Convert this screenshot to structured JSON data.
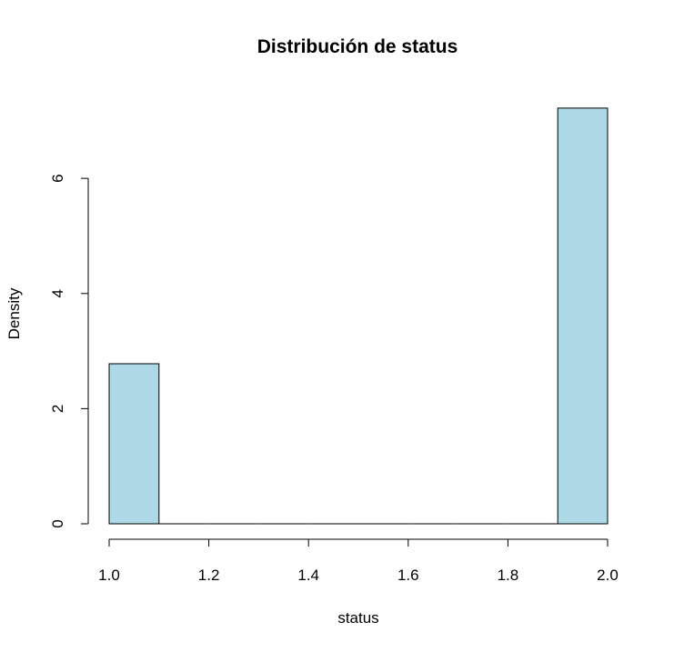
{
  "chart_data": {
    "type": "bar",
    "title": "Distribución de status",
    "xlabel": "status",
    "ylabel": "Density",
    "bar_color": "#ADD8E6",
    "xlim": [
      1.0,
      2.0
    ],
    "ylim": [
      0,
      7.25
    ],
    "xticks": [
      "1.0",
      "1.2",
      "1.4",
      "1.6",
      "1.8",
      "2.0"
    ],
    "yticks": [
      "0",
      "2",
      "4",
      "6"
    ],
    "bins": [
      {
        "x0": 1.0,
        "x1": 1.1,
        "density": 2.78
      },
      {
        "x0": 1.1,
        "x1": 1.2,
        "density": 0
      },
      {
        "x0": 1.2,
        "x1": 1.3,
        "density": 0
      },
      {
        "x0": 1.3,
        "x1": 1.4,
        "density": 0
      },
      {
        "x0": 1.4,
        "x1": 1.5,
        "density": 0
      },
      {
        "x0": 1.5,
        "x1": 1.6,
        "density": 0
      },
      {
        "x0": 1.6,
        "x1": 1.7,
        "density": 0
      },
      {
        "x0": 1.7,
        "x1": 1.8,
        "density": 0
      },
      {
        "x0": 1.8,
        "x1": 1.9,
        "density": 0
      },
      {
        "x0": 1.9,
        "x1": 2.0,
        "density": 7.22
      }
    ],
    "grid": false,
    "legend": "none"
  }
}
